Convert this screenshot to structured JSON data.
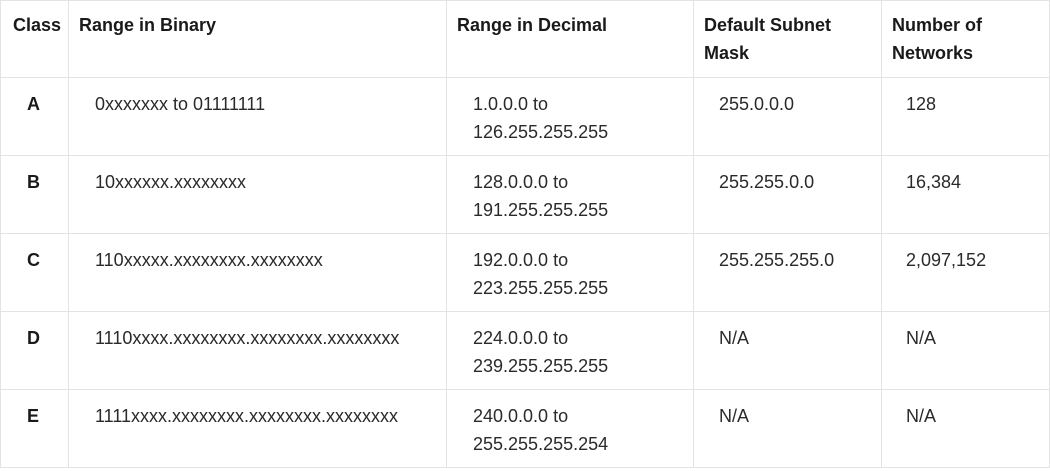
{
  "headers": {
    "class": "Class",
    "binary": "Range in Binary",
    "decimal": "Range in Decimal",
    "mask": "Default Subnet Mask",
    "networks": "Number of Networks"
  },
  "rows": [
    {
      "class": "A",
      "binary": "0xxxxxxx to 01111111",
      "decimal_from": "1.0.0.0 to",
      "decimal_to": "126.255.255.255",
      "mask": "255.0.0.0",
      "networks": "128"
    },
    {
      "class": "B",
      "binary": "10xxxxxx.xxxxxxxx",
      "decimal_from": "128.0.0.0 to",
      "decimal_to": "191.255.255.255",
      "mask": "255.255.0.0",
      "networks": "16,384"
    },
    {
      "class": "C",
      "binary": "110xxxxx.xxxxxxxx.xxxxxxxx",
      "decimal_from": "192.0.0.0 to",
      "decimal_to": "223.255.255.255",
      "mask": "255.255.255.0",
      "networks": "2,097,152"
    },
    {
      "class": "D",
      "binary": "1110xxxx.xxxxxxxx.xxxxxxxx.xxxxxxxx",
      "decimal_from": "224.0.0.0 to",
      "decimal_to": "239.255.255.255",
      "mask": "N/A",
      "networks": "N/A"
    },
    {
      "class": "E",
      "binary": "1111xxxx.xxxxxxxx.xxxxxxxx.xxxxxxxx",
      "decimal_from": "240.0.0.0 to",
      "decimal_to": "255.255.255.254",
      "mask": "N/A",
      "networks": "N/A"
    }
  ],
  "colors": {
    "border": "#e3e3e3",
    "text": "#1f1f1f",
    "background": "#ffffff"
  }
}
